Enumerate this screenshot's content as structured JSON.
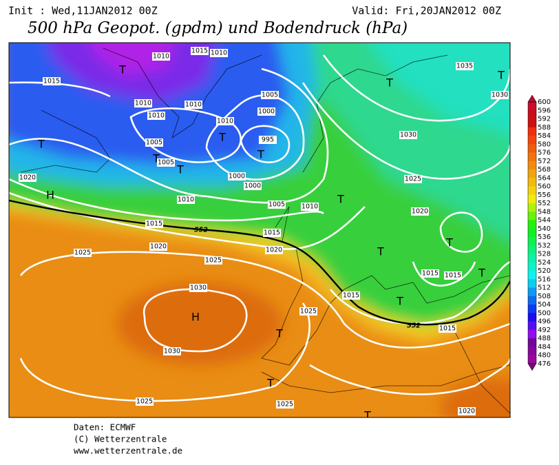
{
  "header": {
    "init": "Init : Wed,11JAN2012 00Z",
    "valid": "Valid: Fri,20JAN2012 00Z",
    "title": "500 hPa Geopot. (gpdm) und Bodendruck (hPa)"
  },
  "map": {
    "isobar_labels": [
      "1015",
      "1010",
      "1015",
      "1010",
      "1010",
      "1010",
      "1010",
      "1005",
      "1005",
      "1010",
      "1005",
      "1000",
      "995",
      "1000",
      "1000",
      "1005",
      "1010",
      "1010",
      "1015",
      "1015",
      "1020",
      "1020",
      "1020",
      "1025",
      "1025",
      "1030",
      "1030",
      "1025",
      "1015",
      "1015",
      "1015",
      "1015",
      "1025",
      "1025",
      "1020",
      "1020",
      "1025",
      "1030",
      "1035",
      "1030"
    ],
    "systems": [
      "T",
      "T",
      "T",
      "T",
      "T",
      "T",
      "T",
      "T",
      "T",
      "T",
      "T",
      "T",
      "T",
      "T",
      "T",
      "T",
      "H",
      "H"
    ],
    "contour_labels": [
      "552",
      "552"
    ]
  },
  "colorbar": {
    "labels": [
      "600",
      "596",
      "592",
      "588",
      "584",
      "580",
      "576",
      "572",
      "568",
      "564",
      "560",
      "556",
      "552",
      "548",
      "544",
      "540",
      "536",
      "532",
      "528",
      "524",
      "520",
      "516",
      "512",
      "508",
      "504",
      "500",
      "496",
      "492",
      "488",
      "484",
      "480",
      "476"
    ]
  },
  "footer": {
    "source": "Daten: ECMWF",
    "copyright": "(C) Wetterzentrale",
    "url": "www.wetterzentrale.de"
  }
}
